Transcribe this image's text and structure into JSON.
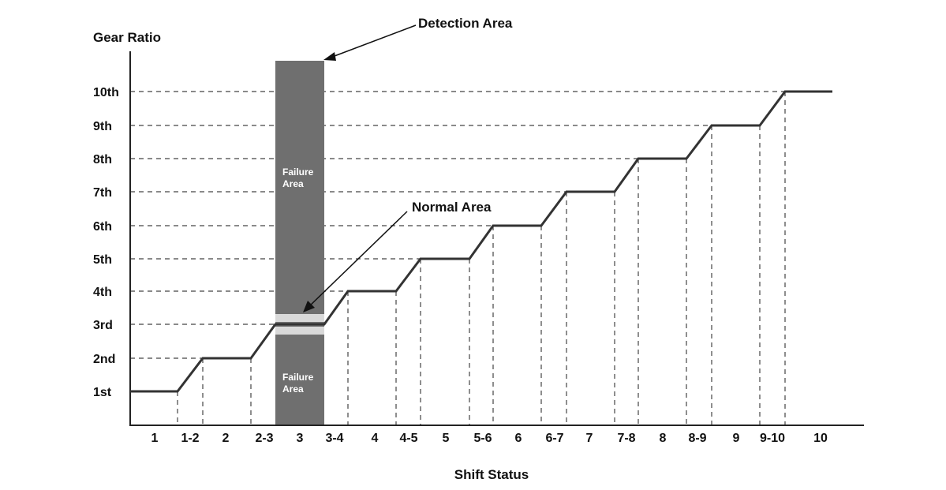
{
  "labels": {
    "y_axis": "Gear Ratio",
    "x_axis": "Shift Status",
    "detection_area": "Detection Area",
    "normal_area": "Normal Area",
    "failure_area_line1": "Failure",
    "failure_area_line2": "Area"
  },
  "gears": [
    "1st",
    "2nd",
    "3rd",
    "4th",
    "5th",
    "6th",
    "7th",
    "8th",
    "9th",
    "10th"
  ],
  "shift_status": [
    "1",
    "1-2",
    "2",
    "2-3",
    "3",
    "3-4",
    "4",
    "4-5",
    "5",
    "5-6",
    "6",
    "6-7",
    "7",
    "7-8",
    "8",
    "8-9",
    "9",
    "9-10",
    "10"
  ],
  "colors": {
    "detection_area": "#6f6f6f",
    "normal_band": "#d9d9d9",
    "line": "#333333"
  }
}
